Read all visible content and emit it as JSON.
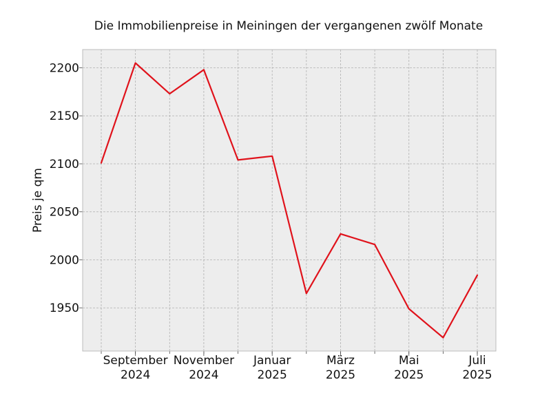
{
  "chart_data": {
    "type": "line",
    "title": "Die Immobilienpreise in Meiningen der vergangenen zwölf Monate",
    "xlabel": "",
    "ylabel": "Preis je qm",
    "x": [
      "2024-08",
      "2024-09",
      "2024-10",
      "2024-11",
      "2024-12",
      "2025-01",
      "2025-02",
      "2025-03",
      "2025-04",
      "2025-05",
      "2025-06",
      "2025-07"
    ],
    "series": [
      {
        "values": [
          2101,
          2205,
          2173,
          2198,
          2104,
          2108,
          1965,
          2027,
          2016,
          1949,
          1919,
          1984
        ]
      }
    ],
    "xticks": [
      {
        "x": "2024-09",
        "label": [
          "September",
          "2024"
        ]
      },
      {
        "x": "2024-11",
        "label": [
          "November",
          "2024"
        ]
      },
      {
        "x": "2025-01",
        "label": [
          "Januar",
          "2025"
        ]
      },
      {
        "x": "2025-03",
        "label": [
          "März",
          "2025"
        ]
      },
      {
        "x": "2025-05",
        "label": [
          "Mai",
          "2025"
        ]
      },
      {
        "x": "2025-07",
        "label": [
          "Juli",
          "2025"
        ]
      }
    ],
    "yticks": [
      1950,
      2000,
      2050,
      2100,
      2150,
      2200
    ],
    "ylim": [
      1905,
      2219
    ],
    "grid": true,
    "colors": {
      "line": "#e0121b",
      "plot_background": "#ededed",
      "frame": "#bcbcbc"
    }
  }
}
